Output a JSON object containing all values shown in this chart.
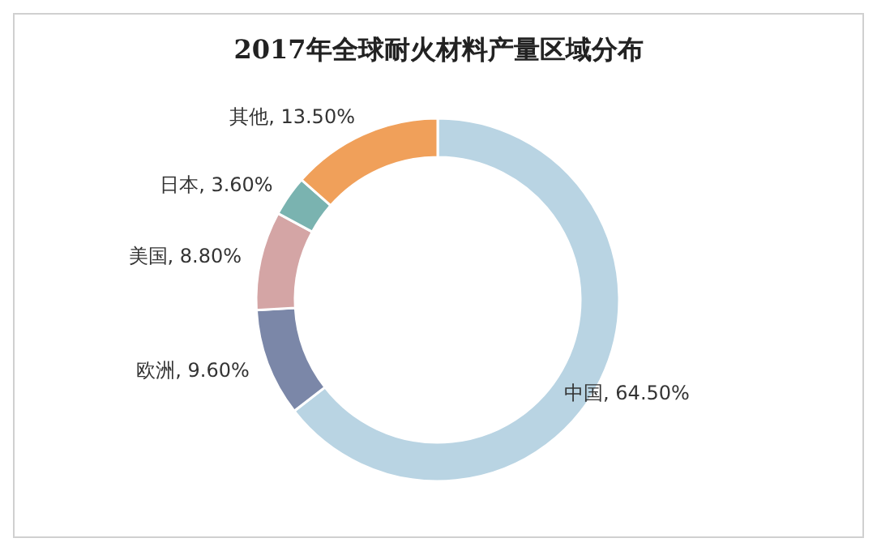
{
  "chart_data": {
    "type": "donut",
    "title": "2017年全球耐火材料产量区域分布",
    "categories": [
      "中国",
      "欧洲",
      "美国",
      "日本",
      "其他"
    ],
    "values": [
      64.5,
      9.6,
      8.8,
      3.6,
      13.5
    ],
    "value_labels": [
      "64.50%",
      "9.60%",
      "8.80%",
      "3.60%",
      "13.50%"
    ],
    "colors": [
      "#b9d4e3",
      "#7b87a8",
      "#d4a5a5",
      "#7ab3b0",
      "#f0a05a"
    ]
  }
}
